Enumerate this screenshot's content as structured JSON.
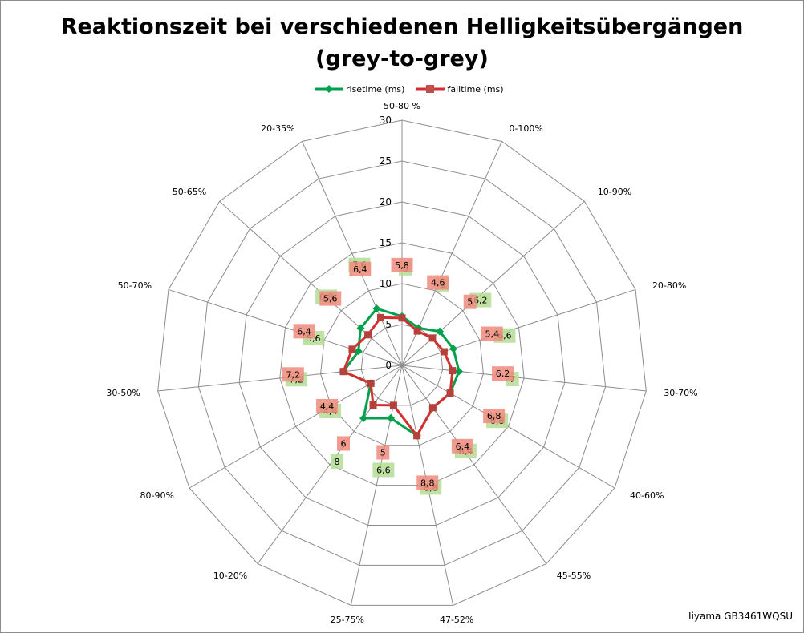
{
  "chart_data": {
    "type": "radar",
    "title_line1": "Reaktionszeit bei verschiedenen Helligkeitsübergängen",
    "title_line2": "(grey-to-grey)",
    "categories": [
      "50-80 %",
      "0-100%",
      "10-90%",
      "20-80%",
      "30-70%",
      "40-60%",
      "45-55%",
      "47-52%",
      "25-75%",
      "10-20%",
      "80-90%",
      "30-50%",
      "50-70%",
      "50-65%",
      "20-35%"
    ],
    "rlim": [
      0,
      30
    ],
    "ticks": [
      "0",
      "5",
      "10",
      "15",
      "20",
      "25",
      "30"
    ],
    "tick_values": [
      0,
      5,
      10,
      15,
      20,
      25,
      30
    ],
    "series": [
      {
        "name": "risetime (ms)",
        "color": "#00a14b",
        "values": [
          6,
          5,
          6.2,
          6.6,
          7,
          6.8,
          6.4,
          8.8,
          6.6,
          8,
          4.4,
          7.2,
          5.6,
          6.8,
          7.6
        ],
        "labels": [
          "6",
          "5",
          "6,2",
          "6,6",
          "7",
          "6,8",
          "6,4",
          "8,8",
          "6,6",
          "8",
          "4,4",
          "7,2",
          "5,6",
          "6,8",
          "7,6"
        ]
      },
      {
        "name": "falltime (ms)",
        "color": "#d42e2e",
        "values": [
          5.8,
          4.6,
          5,
          5.4,
          6.2,
          6.8,
          6.4,
          8.8,
          5,
          6,
          4.4,
          7.2,
          6.4,
          5.6,
          6.4
        ],
        "labels": [
          "5,8",
          "4,6",
          "5",
          "5,4",
          "6,2",
          "6,8",
          "6,4",
          "8,8",
          "5",
          "6",
          "4,4",
          "7,2",
          "6,4",
          "5,6",
          "6,4"
        ]
      }
    ],
    "grid": true,
    "legend_position": "top"
  },
  "credit": "Iiyama GB3461WQSU"
}
